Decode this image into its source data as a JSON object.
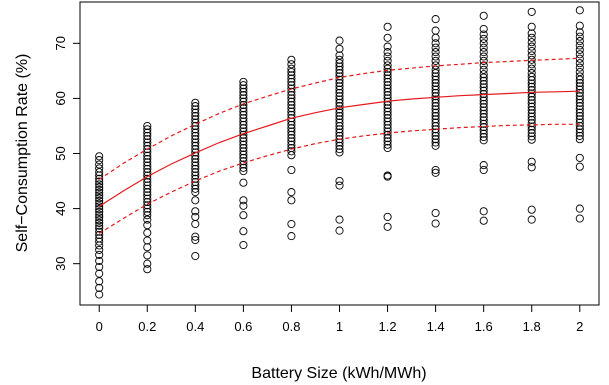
{
  "chart_data": {
    "type": "scatter",
    "title": "",
    "xlabel": "Battery Size (kWh/MWh)",
    "ylabel": "Self−Consumption Rate (%)",
    "xlim": [
      -0.08,
      2.08
    ],
    "ylim": [
      22.5,
      77.5
    ],
    "x_ticks": [
      0,
      0.2,
      0.4,
      0.6,
      0.8,
      1,
      1.2,
      1.4,
      1.6,
      1.8,
      2
    ],
    "x_tick_labels": [
      "0",
      "0.2",
      "0.4",
      "0.6",
      "0.8",
      "1",
      "1.2",
      "1.4",
      "1.6",
      "1.8",
      "2"
    ],
    "y_ticks": [
      30,
      40,
      50,
      60,
      70
    ],
    "y_tick_labels": [
      "30",
      "40",
      "50",
      "60",
      "70"
    ],
    "grid": false,
    "points_by_x": [
      {
        "x": 0,
        "y": [
          49.5,
          48.8,
          48.0,
          47.3,
          46.6,
          46.0,
          45.4,
          44.9,
          44.4,
          43.9,
          43.4,
          42.9,
          42.4,
          41.9,
          41.4,
          40.9,
          40.4,
          39.9,
          39.4,
          38.9,
          38.4,
          37.9,
          37.4,
          36.9,
          36.4,
          35.8,
          35.2,
          34.6,
          34.0,
          33.3,
          32.5,
          31.6,
          30.5,
          29.4,
          28.2,
          26.8,
          25.6,
          24.4
        ]
      },
      {
        "x": 0.2,
        "y": [
          55.0,
          54.4,
          53.8,
          53.2,
          52.6,
          52.0,
          51.4,
          50.8,
          50.2,
          49.6,
          49.0,
          48.4,
          47.8,
          47.2,
          46.6,
          46.0,
          45.4,
          44.8,
          44.2,
          43.6,
          43.0,
          42.4,
          41.8,
          41.2,
          40.6,
          40.0,
          39.4,
          38.8,
          38.0,
          37.0,
          35.6,
          34.2,
          33.0,
          31.5,
          30.0,
          29.0
        ]
      },
      {
        "x": 0.4,
        "y": [
          59.2,
          58.6,
          58.0,
          57.4,
          56.8,
          56.2,
          55.6,
          55.0,
          54.4,
          53.8,
          53.2,
          52.6,
          52.0,
          51.4,
          50.8,
          50.2,
          49.6,
          49.0,
          48.4,
          47.8,
          47.2,
          46.6,
          46.0,
          45.4,
          44.8,
          44.2,
          43.6,
          43.0,
          41.5,
          39.5,
          38.5,
          37.2,
          34.9,
          34.3,
          31.4
        ]
      },
      {
        "x": 0.6,
        "y": [
          63.0,
          62.4,
          61.8,
          61.2,
          60.6,
          60.0,
          59.4,
          58.8,
          58.2,
          57.6,
          57.0,
          56.4,
          55.8,
          55.2,
          54.6,
          54.0,
          53.4,
          52.8,
          52.2,
          51.6,
          51.0,
          50.4,
          49.8,
          49.2,
          48.6,
          48.0,
          47.4,
          46.8,
          44.7,
          41.5,
          40.5,
          38.8,
          35.9,
          33.4
        ]
      },
      {
        "x": 0.8,
        "y": [
          67.0,
          66.2,
          65.4,
          64.8,
          64.2,
          63.6,
          63.0,
          62.4,
          61.8,
          61.2,
          60.6,
          60.0,
          59.4,
          58.8,
          58.2,
          57.6,
          57.0,
          56.4,
          55.8,
          55.2,
          54.6,
          54.0,
          53.4,
          52.8,
          52.2,
          51.6,
          51.0,
          50.4,
          49.7,
          47.0,
          43.0,
          41.5,
          37.2,
          35.0
        ]
      },
      {
        "x": 1,
        "y": [
          70.5,
          69.0,
          67.8,
          67.0,
          66.4,
          65.8,
          65.2,
          64.6,
          64.0,
          63.4,
          62.8,
          62.2,
          61.6,
          61.0,
          60.4,
          59.8,
          59.2,
          58.6,
          58.0,
          57.4,
          56.8,
          56.2,
          55.6,
          55.0,
          54.4,
          53.8,
          53.2,
          52.6,
          52.0,
          51.4,
          50.8,
          50.2,
          45.0,
          44.2,
          38.0,
          36.0
        ]
      },
      {
        "x": 1.2,
        "y": [
          73.0,
          71.0,
          69.4,
          68.4,
          67.6,
          66.8,
          66.0,
          65.4,
          64.8,
          64.2,
          63.6,
          63.0,
          62.4,
          61.8,
          61.2,
          60.6,
          60.0,
          59.4,
          58.8,
          58.2,
          57.6,
          57.0,
          56.4,
          55.8,
          55.2,
          54.6,
          54.0,
          53.4,
          52.8,
          52.2,
          51.6,
          51.0,
          46.0,
          45.8,
          38.5,
          36.7
        ]
      },
      {
        "x": 1.4,
        "y": [
          74.4,
          72.3,
          71.0,
          70.0,
          69.2,
          68.4,
          67.6,
          66.8,
          66.0,
          65.2,
          64.6,
          64.0,
          63.4,
          62.8,
          62.2,
          61.6,
          61.0,
          60.4,
          59.8,
          59.2,
          58.6,
          58.0,
          57.4,
          56.8,
          56.2,
          55.6,
          55.0,
          54.4,
          53.8,
          53.2,
          52.6,
          52.0,
          51.4,
          47.0,
          46.5,
          39.2,
          37.3
        ]
      },
      {
        "x": 1.6,
        "y": [
          75.0,
          72.6,
          71.6,
          70.8,
          70.0,
          69.2,
          68.4,
          67.6,
          66.8,
          66.0,
          65.2,
          64.4,
          63.8,
          63.2,
          62.6,
          62.0,
          61.4,
          60.8,
          60.2,
          59.6,
          59.0,
          58.4,
          57.8,
          57.2,
          56.6,
          56.0,
          55.4,
          54.8,
          54.2,
          53.6,
          53.0,
          52.4,
          47.9,
          47.0,
          39.5,
          37.8
        ]
      },
      {
        "x": 1.8,
        "y": [
          75.7,
          73.0,
          71.8,
          71.0,
          70.2,
          69.4,
          68.6,
          67.8,
          67.0,
          66.2,
          65.4,
          64.6,
          63.9,
          63.3,
          62.7,
          62.1,
          61.5,
          60.9,
          60.3,
          59.7,
          59.1,
          58.5,
          57.9,
          57.3,
          56.7,
          56.1,
          55.5,
          54.9,
          54.3,
          53.7,
          53.1,
          52.5,
          48.5,
          47.5,
          39.8,
          38.0
        ]
      },
      {
        "x": 2,
        "y": [
          76.0,
          73.2,
          72.0,
          71.2,
          70.4,
          69.6,
          68.8,
          68.0,
          67.2,
          66.4,
          65.6,
          64.8,
          64.0,
          63.4,
          62.8,
          62.2,
          61.6,
          61.0,
          60.4,
          59.8,
          59.2,
          58.6,
          58.0,
          57.4,
          56.8,
          56.2,
          55.6,
          55.0,
          54.4,
          53.8,
          53.2,
          52.6,
          49.2,
          47.6,
          40.0,
          38.2
        ]
      }
    ],
    "fit_line": {
      "color": "#e31a1c",
      "x": [
        0,
        0.1,
        0.2,
        0.3,
        0.4,
        0.5,
        0.6,
        0.7,
        0.8,
        0.9,
        1.0,
        1.1,
        1.2,
        1.3,
        1.4,
        1.5,
        1.6,
        1.7,
        1.8,
        1.9,
        2.0
      ],
      "center": [
        40.4,
        43.2,
        45.8,
        48.1,
        50.1,
        52.0,
        53.6,
        55.0,
        56.4,
        57.4,
        58.3,
        58.9,
        59.5,
        59.9,
        60.2,
        60.5,
        60.7,
        60.9,
        61.1,
        61.2,
        61.3
      ],
      "upper": [
        45.3,
        48.2,
        50.8,
        53.2,
        55.3,
        57.3,
        59.0,
        60.4,
        61.7,
        62.8,
        63.8,
        64.5,
        65.1,
        65.5,
        65.9,
        66.2,
        66.5,
        66.7,
        66.9,
        67.1,
        67.3
      ],
      "lower": [
        35.5,
        38.2,
        40.8,
        43.0,
        45.0,
        46.8,
        48.3,
        49.6,
        50.8,
        51.8,
        52.6,
        53.2,
        53.7,
        54.1,
        54.4,
        54.7,
        54.9,
        55.1,
        55.2,
        55.3,
        55.3
      ]
    }
  }
}
